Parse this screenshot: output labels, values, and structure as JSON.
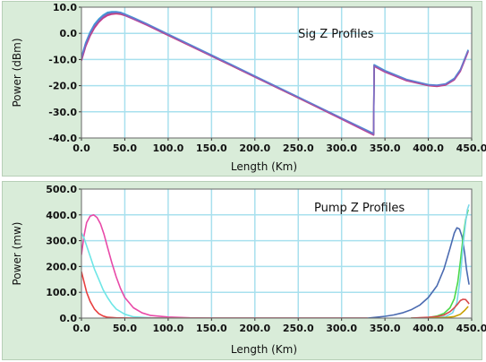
{
  "chart_data": [
    {
      "type": "line",
      "title": "Sig Z Profiles",
      "xlabel": "Length (Km)",
      "ylabel": "Power (dBm)",
      "xlim": [
        0,
        450
      ],
      "ylim": [
        -40,
        10
      ],
      "xticks": [
        "0.0",
        "50.0",
        "100.0",
        "150.0",
        "200.0",
        "250.0",
        "300.0",
        "350.0",
        "400.0",
        "450.0"
      ],
      "yticks": [
        "-40.0",
        "-30.0",
        "-20.0",
        "-10.0",
        "0.0",
        "10.0"
      ],
      "grid": true,
      "colors": {
        "plot_bg": "#ffffff",
        "grid": "#a8e0ee",
        "panel_bg": "#d9ecd9"
      },
      "series": [
        {
          "color": "#3a7a3a",
          "points": [
            [
              0,
              -9.5
            ],
            [
              5,
              -4
            ],
            [
              10,
              0
            ],
            [
              15,
              3
            ],
            [
              20,
              5
            ],
            [
              25,
              6.5
            ],
            [
              30,
              7.5
            ],
            [
              35,
              7.9
            ],
            [
              40,
              8
            ],
            [
              45,
              7.8
            ],
            [
              50,
              7.2
            ],
            [
              60,
              5.8
            ],
            [
              75,
              3.5
            ],
            [
              100,
              -0.5
            ],
            [
              150,
              -8.5
            ],
            [
              200,
              -16.5
            ],
            [
              250,
              -24.5
            ],
            [
              300,
              -32.5
            ],
            [
              337,
              -38.5
            ],
            [
              337.5,
              -12.2
            ],
            [
              350,
              -14.4
            ],
            [
              375,
              -17.8
            ],
            [
              400,
              -19.8
            ],
            [
              410,
              -20
            ],
            [
              420,
              -19.5
            ],
            [
              430,
              -17.5
            ],
            [
              437,
              -14
            ],
            [
              443,
              -9
            ],
            [
              446,
              -6.5
            ]
          ]
        },
        {
          "color": "#c83aa0",
          "points": [
            [
              0,
              -10.5
            ],
            [
              5,
              -5
            ],
            [
              10,
              -1
            ],
            [
              15,
              2
            ],
            [
              20,
              4.2
            ],
            [
              25,
              5.8
            ],
            [
              30,
              6.8
            ],
            [
              35,
              7.3
            ],
            [
              40,
              7.5
            ],
            [
              45,
              7.3
            ],
            [
              50,
              6.8
            ],
            [
              60,
              5.4
            ],
            [
              75,
              3.2
            ],
            [
              100,
              -0.8
            ],
            [
              150,
              -8.7
            ],
            [
              200,
              -16.7
            ],
            [
              250,
              -24.7
            ],
            [
              300,
              -32.8
            ],
            [
              337,
              -38.9
            ],
            [
              337.5,
              -12.6
            ],
            [
              350,
              -14.8
            ],
            [
              375,
              -18.1
            ],
            [
              400,
              -20
            ],
            [
              410,
              -20.3
            ],
            [
              420,
              -19.8
            ],
            [
              430,
              -17.8
            ],
            [
              437,
              -14.5
            ],
            [
              443,
              -9.5
            ],
            [
              446,
              -7
            ]
          ]
        },
        {
          "color": "#3aa0d8",
          "points": [
            [
              0,
              -9
            ],
            [
              5,
              -3.5
            ],
            [
              10,
              0.5
            ],
            [
              15,
              3.5
            ],
            [
              20,
              5.5
            ],
            [
              25,
              7
            ],
            [
              30,
              8
            ],
            [
              35,
              8.3
            ],
            [
              40,
              8.3
            ],
            [
              45,
              8
            ],
            [
              50,
              7.4
            ],
            [
              60,
              6
            ],
            [
              75,
              3.7
            ],
            [
              100,
              -0.3
            ],
            [
              150,
              -8.3
            ],
            [
              200,
              -16.3
            ],
            [
              250,
              -24.3
            ],
            [
              300,
              -32.4
            ],
            [
              337,
              -38.3
            ],
            [
              337.5,
              -12
            ],
            [
              350,
              -14.2
            ],
            [
              375,
              -17.6
            ],
            [
              400,
              -19.6
            ],
            [
              410,
              -19.8
            ],
            [
              420,
              -19.3
            ],
            [
              430,
              -17.2
            ],
            [
              437,
              -13.8
            ],
            [
              443,
              -8.8
            ],
            [
              446,
              -6.3
            ]
          ]
        },
        {
          "color": "#d84040",
          "points": [
            [
              0,
              -10
            ],
            [
              5,
              -4.5
            ],
            [
              10,
              -0.5
            ],
            [
              15,
              2.5
            ],
            [
              20,
              4.6
            ],
            [
              25,
              6.2
            ],
            [
              30,
              7.2
            ],
            [
              35,
              7.6
            ],
            [
              40,
              7.7
            ],
            [
              45,
              7.5
            ],
            [
              50,
              7
            ],
            [
              60,
              5.6
            ],
            [
              75,
              3.4
            ],
            [
              100,
              -0.6
            ],
            [
              150,
              -8.6
            ],
            [
              200,
              -16.6
            ],
            [
              250,
              -24.6
            ],
            [
              300,
              -32.6
            ],
            [
              337,
              -38.7
            ],
            [
              337.5,
              -12.4
            ],
            [
              350,
              -14.6
            ],
            [
              375,
              -17.9
            ],
            [
              400,
              -19.9
            ],
            [
              410,
              -20.1
            ],
            [
              420,
              -19.6
            ],
            [
              430,
              -17.6
            ],
            [
              437,
              -14.2
            ],
            [
              443,
              -9.2
            ],
            [
              446,
              -6.7
            ]
          ]
        },
        {
          "color": "#7a6ac8",
          "points": [
            [
              0,
              -9.8
            ],
            [
              5,
              -4.2
            ],
            [
              10,
              -0.2
            ],
            [
              15,
              2.8
            ],
            [
              20,
              4.8
            ],
            [
              25,
              6.4
            ],
            [
              30,
              7.4
            ],
            [
              35,
              7.8
            ],
            [
              40,
              7.9
            ],
            [
              45,
              7.7
            ],
            [
              50,
              7.1
            ],
            [
              60,
              5.7
            ],
            [
              75,
              3.5
            ],
            [
              100,
              -0.5
            ],
            [
              150,
              -8.5
            ],
            [
              200,
              -16.5
            ],
            [
              250,
              -24.5
            ],
            [
              300,
              -32.5
            ],
            [
              337,
              -38.6
            ],
            [
              337.5,
              -12.3
            ],
            [
              350,
              -14.5
            ],
            [
              375,
              -17.8
            ],
            [
              400,
              -19.8
            ],
            [
              410,
              -20
            ],
            [
              420,
              -19.5
            ],
            [
              430,
              -17.5
            ],
            [
              437,
              -14.1
            ],
            [
              443,
              -9.1
            ],
            [
              446,
              -6.6
            ]
          ]
        }
      ]
    },
    {
      "type": "line",
      "title": "Pump Z Profiles",
      "xlabel": "Length (Km)",
      "ylabel": "Power (mw)",
      "xlim": [
        0,
        450
      ],
      "ylim": [
        0,
        500
      ],
      "xticks": [
        "0.0",
        "50.0",
        "100.0",
        "150.0",
        "200.0",
        "250.0",
        "300.0",
        "350.0",
        "400.0",
        "450.0"
      ],
      "yticks": [
        "0.0",
        "100.0",
        "200.0",
        "300.0",
        "400.0",
        "500.0"
      ],
      "grid": true,
      "colors": {
        "plot_bg": "#ffffff",
        "grid": "#a8e0ee",
        "panel_bg": "#d9ecd9"
      },
      "series": [
        {
          "color": "#e84aa8",
          "points": [
            [
              0,
              245
            ],
            [
              3,
              320
            ],
            [
              6,
              370
            ],
            [
              10,
              395
            ],
            [
              14,
              400
            ],
            [
              18,
              390
            ],
            [
              22,
              365
            ],
            [
              26,
              325
            ],
            [
              30,
              275
            ],
            [
              35,
              215
            ],
            [
              40,
              160
            ],
            [
              45,
              115
            ],
            [
              50,
              80
            ],
            [
              60,
              40
            ],
            [
              70,
              20
            ],
            [
              80,
              10
            ],
            [
              100,
              4
            ],
            [
              125,
              1
            ],
            [
              150,
              0
            ],
            [
              330,
              0
            ]
          ]
        },
        {
          "color": "#6ee6e6",
          "points": [
            [
              0,
              330
            ],
            [
              3,
              310
            ],
            [
              6,
              280
            ],
            [
              10,
              240
            ],
            [
              15,
              190
            ],
            [
              20,
              150
            ],
            [
              25,
              110
            ],
            [
              30,
              80
            ],
            [
              35,
              55
            ],
            [
              40,
              35
            ],
            [
              50,
              15
            ],
            [
              60,
              5
            ],
            [
              80,
              1
            ],
            [
              100,
              0
            ],
            [
              330,
              0
            ]
          ]
        },
        {
          "color": "#e84040",
          "points": [
            [
              0,
              180
            ],
            [
              3,
              140
            ],
            [
              6,
              100
            ],
            [
              10,
              65
            ],
            [
              15,
              35
            ],
            [
              20,
              17
            ],
            [
              25,
              8
            ],
            [
              30,
              3
            ],
            [
              40,
              1
            ],
            [
              60,
              0
            ],
            [
              330,
              0
            ]
          ]
        },
        {
          "color": "#4a6ab0",
          "points": [
            [
              330,
              0
            ],
            [
              340,
              3
            ],
            [
              350,
              7
            ],
            [
              360,
              12
            ],
            [
              370,
              20
            ],
            [
              380,
              32
            ],
            [
              390,
              50
            ],
            [
              400,
              80
            ],
            [
              410,
              125
            ],
            [
              418,
              190
            ],
            [
              425,
              270
            ],
            [
              430,
              330
            ],
            [
              433,
              350
            ],
            [
              436,
              345
            ],
            [
              439,
              315
            ],
            [
              442,
              250
            ],
            [
              444,
              190
            ],
            [
              446,
              150
            ],
            [
              447,
              130
            ]
          ]
        },
        {
          "color": "#4ad84a",
          "points": [
            [
              380,
              0
            ],
            [
              400,
              2
            ],
            [
              410,
              8
            ],
            [
              418,
              18
            ],
            [
              425,
              40
            ],
            [
              430,
              75
            ],
            [
              434,
              140
            ],
            [
              437,
              220
            ],
            [
              440,
              310
            ],
            [
              443,
              380
            ],
            [
              446,
              420
            ]
          ]
        },
        {
          "color": "#7ad8e8",
          "points": [
            [
              390,
              0
            ],
            [
              410,
              2
            ],
            [
              420,
              6
            ],
            [
              428,
              20
            ],
            [
              433,
              60
            ],
            [
              437,
              160
            ],
            [
              440,
              280
            ],
            [
              443,
              370
            ],
            [
              445,
              420
            ],
            [
              447,
              440
            ]
          ]
        },
        {
          "color": "#d84a4a",
          "points": [
            [
              380,
              0
            ],
            [
              400,
              3
            ],
            [
              410,
              6
            ],
            [
              418,
              12
            ],
            [
              425,
              25
            ],
            [
              430,
              40
            ],
            [
              434,
              55
            ],
            [
              437,
              68
            ],
            [
              440,
              73
            ],
            [
              443,
              72
            ],
            [
              446,
              60
            ],
            [
              447,
              55
            ]
          ]
        },
        {
          "color": "#c8a000",
          "points": [
            [
              400,
              0
            ],
            [
              420,
              2
            ],
            [
              430,
              6
            ],
            [
              437,
              15
            ],
            [
              442,
              30
            ],
            [
              446,
              45
            ]
          ]
        }
      ]
    }
  ]
}
